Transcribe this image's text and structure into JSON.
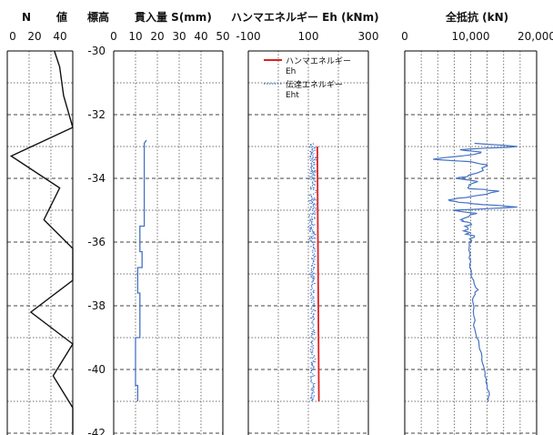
{
  "header": {
    "n_title": "N",
    "n_title2": "値",
    "depth_title": "標高",
    "pen_title": "貫入量 S(mm)",
    "ene_title": "ハンマエネルギー Eh (kNm)",
    "res_title": "全抵抗 (kN)"
  },
  "chart_data": [
    {
      "type": "line",
      "id": "n_value",
      "title": "N 値",
      "xticks": [
        "0",
        "20",
        "40"
      ],
      "xlim": [
        0,
        50
      ],
      "ylabel": "標高",
      "ylim": [
        -42,
        -30
      ],
      "yticks": [
        "-30",
        "-32",
        "-34",
        "-36",
        "-38",
        "-40",
        "-42"
      ],
      "grid": true,
      "points": [
        {
          "x": 36,
          "y": -30.0
        },
        {
          "x": 40,
          "y": -30.5
        },
        {
          "x": 43,
          "y": -31.4
        },
        {
          "x": 50,
          "y": -32.4
        },
        {
          "x": 3,
          "y": -33.3
        },
        {
          "x": 40,
          "y": -34.3
        },
        {
          "x": 28,
          "y": -35.3
        },
        {
          "x": 50,
          "y": -36.2
        },
        {
          "x": 50,
          "y": -37.2
        },
        {
          "x": 18,
          "y": -38.2
        },
        {
          "x": 50,
          "y": -39.2
        },
        {
          "x": 35,
          "y": -40.2
        },
        {
          "x": 50,
          "y": -41.2
        },
        {
          "x": 50,
          "y": -42.0
        }
      ]
    },
    {
      "type": "line",
      "id": "penetration",
      "title": "貫入量 S(mm)",
      "xticks": [
        "0",
        "10",
        "20",
        "30",
        "40",
        "50"
      ],
      "xlim": [
        0,
        50
      ],
      "ylim": [
        -42,
        -30
      ],
      "grid": true,
      "color": "#4472c4",
      "points": [
        {
          "x": 15,
          "y": -32.8
        },
        {
          "x": 14,
          "y": -32.9
        },
        {
          "x": 14,
          "y": -35.5
        },
        {
          "x": 12,
          "y": -35.5
        },
        {
          "x": 12,
          "y": -36.3
        },
        {
          "x": 13,
          "y": -36.3
        },
        {
          "x": 13,
          "y": -36.8
        },
        {
          "x": 11,
          "y": -36.8
        },
        {
          "x": 11,
          "y": -37.6
        },
        {
          "x": 12,
          "y": -37.6
        },
        {
          "x": 12,
          "y": -39.0
        },
        {
          "x": 10,
          "y": -39.0
        },
        {
          "x": 10,
          "y": -40.5
        },
        {
          "x": 11,
          "y": -40.5
        },
        {
          "x": 11,
          "y": -41.0
        }
      ]
    },
    {
      "type": "line",
      "id": "energy",
      "title": "ハンマエネルギー Eh (kNm)",
      "xticks": [
        "-100",
        "100",
        "300"
      ],
      "xlim": [
        -100,
        300
      ],
      "ylim": [
        -42,
        -30
      ],
      "grid": true,
      "legend_position": "top-right",
      "series": [
        {
          "name": "ハンマエネルギー\nEh",
          "color": "#e02020",
          "points": [
            {
              "x": 130,
              "y": -33.0
            },
            {
              "x": 135,
              "y": -41.0
            }
          ]
        },
        {
          "name": "伝達エネルギー\nEht",
          "color": "#4472c4",
          "dashed": true,
          "center": 115,
          "depth_range": [
            -41.0,
            -32.9
          ]
        }
      ]
    },
    {
      "type": "line",
      "id": "total_resistance",
      "title": "全抵抗 (kN)",
      "xticks": [
        "0",
        "10,000",
        "20,000"
      ],
      "xlim": [
        0,
        20000
      ],
      "ylim": [
        -42,
        -30
      ],
      "grid": true,
      "color": "#4472c4",
      "points": [
        {
          "x": 10300,
          "y": -32.9
        },
        {
          "x": 17500,
          "y": -33.0
        },
        {
          "x": 8500,
          "y": -33.1
        },
        {
          "x": 12000,
          "y": -33.2
        },
        {
          "x": 4500,
          "y": -33.4
        },
        {
          "x": 11000,
          "y": -33.5
        },
        {
          "x": 13000,
          "y": -33.6
        },
        {
          "x": 9800,
          "y": -33.9
        },
        {
          "x": 7800,
          "y": -34.0
        },
        {
          "x": 11200,
          "y": -34.1
        },
        {
          "x": 9000,
          "y": -34.3
        },
        {
          "x": 14500,
          "y": -34.4
        },
        {
          "x": 9200,
          "y": -34.6
        },
        {
          "x": 6500,
          "y": -34.7
        },
        {
          "x": 10800,
          "y": -34.8
        },
        {
          "x": 17000,
          "y": -34.9
        },
        {
          "x": 7500,
          "y": -35.0
        },
        {
          "x": 10500,
          "y": -35.1
        },
        {
          "x": 8200,
          "y": -35.3
        },
        {
          "x": 10000,
          "y": -35.4
        },
        {
          "x": 9100,
          "y": -35.6
        },
        {
          "x": 10100,
          "y": -35.8
        },
        {
          "x": 9700,
          "y": -36.0
        },
        {
          "x": 9900,
          "y": -36.5
        },
        {
          "x": 10050,
          "y": -36.9
        },
        {
          "x": 10300,
          "y": -37.2
        },
        {
          "x": 11000,
          "y": -37.5
        },
        {
          "x": 10200,
          "y": -37.8
        },
        {
          "x": 10400,
          "y": -38.1
        },
        {
          "x": 10700,
          "y": -38.4
        },
        {
          "x": 10500,
          "y": -38.7
        },
        {
          "x": 11200,
          "y": -39.1
        },
        {
          "x": 11700,
          "y": -39.6
        },
        {
          "x": 12100,
          "y": -40.0
        },
        {
          "x": 12400,
          "y": -40.4
        },
        {
          "x": 12800,
          "y": -40.8
        },
        {
          "x": 12700,
          "y": -41.0
        }
      ]
    }
  ]
}
